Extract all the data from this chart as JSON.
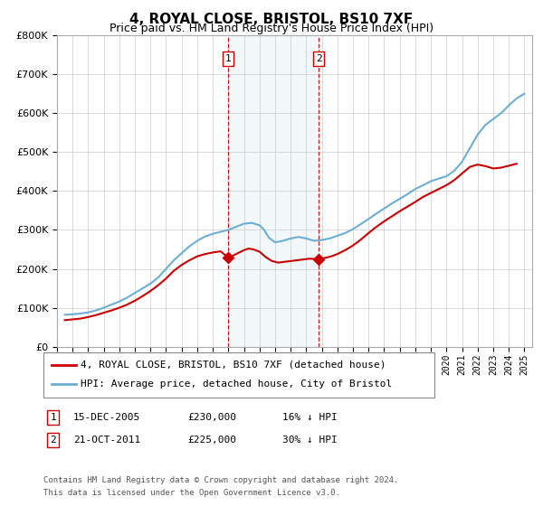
{
  "title": "4, ROYAL CLOSE, BRISTOL, BS10 7XF",
  "subtitle": "Price paid vs. HM Land Registry's House Price Index (HPI)",
  "legend_line1": "4, ROYAL CLOSE, BRISTOL, BS10 7XF (detached house)",
  "legend_line2": "HPI: Average price, detached house, City of Bristol",
  "annotation1_label": "1",
  "annotation1_date": "15-DEC-2005",
  "annotation1_price": "£230,000",
  "annotation1_hpi": "16% ↓ HPI",
  "annotation1_year": 2005.96,
  "annotation1_value": 230000,
  "annotation2_label": "2",
  "annotation2_date": "21-OCT-2011",
  "annotation2_price": "£225,000",
  "annotation2_hpi": "30% ↓ HPI",
  "annotation2_year": 2011.8,
  "annotation2_value": 225000,
  "footnote_line1": "Contains HM Land Registry data © Crown copyright and database right 2024.",
  "footnote_line2": "This data is licensed under the Open Government Licence v3.0.",
  "hpi_color": "#6baed6",
  "price_color": "#cc0000",
  "vline_color": "#cc0000",
  "marker_color": "#cc0000",
  "ylim": [
    0,
    800000
  ],
  "xlim_start": 1995.0,
  "xlim_end": 2025.5,
  "background_color": "#ffffff",
  "grid_color": "#cccccc",
  "years_hpi": [
    1995.5,
    1996.0,
    1996.5,
    1997.0,
    1997.5,
    1998.0,
    1998.5,
    1999.0,
    1999.5,
    2000.0,
    2000.5,
    2001.0,
    2001.5,
    2002.0,
    2002.5,
    2003.0,
    2003.5,
    2004.0,
    2004.5,
    2005.0,
    2005.5,
    2006.0,
    2006.5,
    2007.0,
    2007.5,
    2008.0,
    2008.3,
    2008.6,
    2009.0,
    2009.5,
    2010.0,
    2010.5,
    2011.0,
    2011.5,
    2012.0,
    2012.5,
    2013.0,
    2013.5,
    2014.0,
    2014.5,
    2015.0,
    2015.5,
    2016.0,
    2016.5,
    2017.0,
    2017.5,
    2018.0,
    2018.5,
    2019.0,
    2019.5,
    2020.0,
    2020.5,
    2021.0,
    2021.5,
    2022.0,
    2022.5,
    2023.0,
    2023.5,
    2024.0,
    2024.5,
    2025.0
  ],
  "hpi_values": [
    82000,
    83000,
    85000,
    88000,
    93000,
    100000,
    108000,
    116000,
    126000,
    138000,
    150000,
    162000,
    178000,
    200000,
    222000,
    240000,
    258000,
    272000,
    283000,
    290000,
    295000,
    300000,
    308000,
    316000,
    318000,
    312000,
    300000,
    280000,
    268000,
    272000,
    278000,
    282000,
    278000,
    272000,
    274000,
    278000,
    285000,
    292000,
    302000,
    315000,
    328000,
    342000,
    355000,
    368000,
    380000,
    392000,
    405000,
    415000,
    425000,
    432000,
    438000,
    452000,
    475000,
    510000,
    545000,
    570000,
    585000,
    600000,
    620000,
    638000,
    650000
  ],
  "years_price": [
    1995.5,
    1996.0,
    1996.5,
    1997.0,
    1997.5,
    1998.0,
    1998.5,
    1999.0,
    1999.5,
    2000.0,
    2000.5,
    2001.0,
    2001.5,
    2002.0,
    2002.5,
    2003.0,
    2003.5,
    2004.0,
    2004.5,
    2005.0,
    2005.5,
    2005.96,
    2006.2,
    2006.5,
    2007.0,
    2007.3,
    2007.6,
    2008.0,
    2008.4,
    2008.8,
    2009.2,
    2009.6,
    2010.0,
    2010.4,
    2010.8,
    2011.2,
    2011.8,
    2012.2,
    2012.6,
    2013.0,
    2013.5,
    2014.0,
    2014.5,
    2015.0,
    2015.5,
    2016.0,
    2016.5,
    2017.0,
    2017.5,
    2018.0,
    2018.5,
    2019.0,
    2019.5,
    2020.0,
    2020.5,
    2021.0,
    2021.5,
    2022.0,
    2022.5,
    2023.0,
    2023.5,
    2024.0,
    2024.5
  ],
  "price_values": [
    68000,
    70000,
    72000,
    76000,
    81000,
    87000,
    93000,
    100000,
    108000,
    118000,
    130000,
    143000,
    158000,
    175000,
    195000,
    210000,
    222000,
    232000,
    238000,
    242000,
    245000,
    230000,
    232000,
    238000,
    248000,
    252000,
    250000,
    244000,
    230000,
    220000,
    216000,
    218000,
    220000,
    222000,
    224000,
    226000,
    225000,
    228000,
    232000,
    238000,
    248000,
    260000,
    275000,
    292000,
    308000,
    322000,
    335000,
    348000,
    360000,
    372000,
    385000,
    395000,
    405000,
    415000,
    428000,
    445000,
    462000,
    468000,
    464000,
    458000,
    460000,
    465000,
    470000
  ]
}
